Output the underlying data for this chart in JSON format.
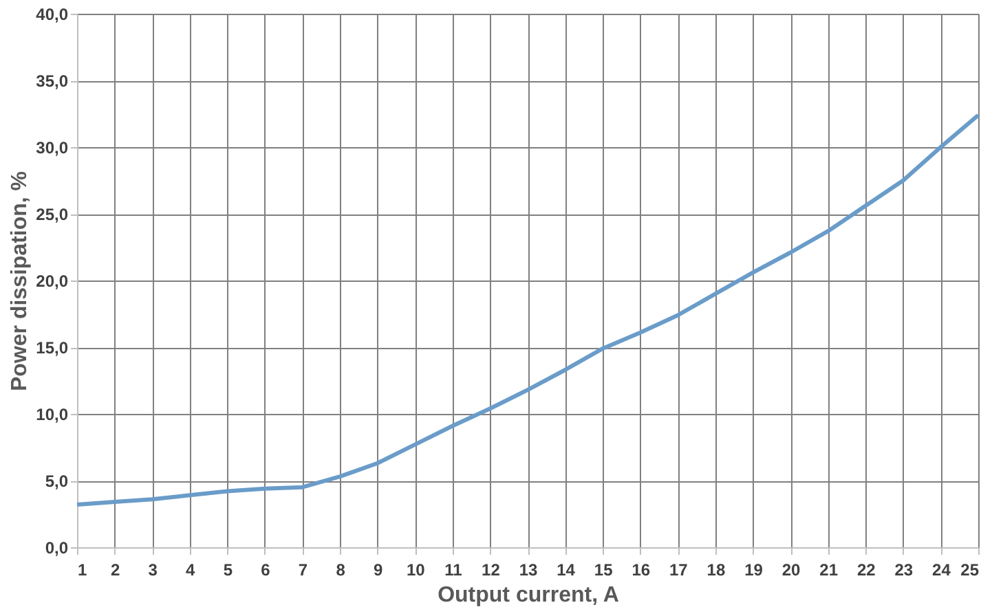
{
  "chart_data": {
    "type": "line",
    "xlabel": "Output current, A",
    "ylabel": "Power dissipation, %",
    "x": [
      1,
      2,
      3,
      4,
      5,
      6,
      7,
      8,
      9,
      10,
      11,
      12,
      13,
      14,
      15,
      16,
      17,
      18,
      19,
      20,
      21,
      22,
      23,
      24,
      25
    ],
    "series": [
      {
        "color": "#6a9cc9",
        "values": [
          3.2,
          3.4,
          3.6,
          3.9,
          4.2,
          4.4,
          4.5,
          5.3,
          6.3,
          7.7,
          9.1,
          10.4,
          11.8,
          13.3,
          14.9,
          16.1,
          17.4,
          19.0,
          20.6,
          22.1,
          23.7,
          25.6,
          27.5,
          30.0,
          32.4
        ]
      }
    ],
    "xlim": [
      1,
      25
    ],
    "xticks": [
      1,
      2,
      3,
      4,
      5,
      6,
      7,
      8,
      9,
      10,
      11,
      12,
      13,
      14,
      15,
      16,
      17,
      18,
      19,
      20,
      21,
      22,
      23,
      24,
      25
    ],
    "ylim": [
      0,
      40
    ],
    "yticks": [
      {
        "value": 0,
        "label": "0,0"
      },
      {
        "value": 5,
        "label": "5,0"
      },
      {
        "value": 10,
        "label": "10,0"
      },
      {
        "value": 15,
        "label": "15,0"
      },
      {
        "value": 20,
        "label": "20,0"
      },
      {
        "value": 25,
        "label": "25,0"
      },
      {
        "value": 30,
        "label": "30,0"
      },
      {
        "value": 35,
        "label": "35,0"
      },
      {
        "value": 40,
        "label": "40,0"
      }
    ],
    "grid": true,
    "marker": "none",
    "line_style": "solid"
  }
}
